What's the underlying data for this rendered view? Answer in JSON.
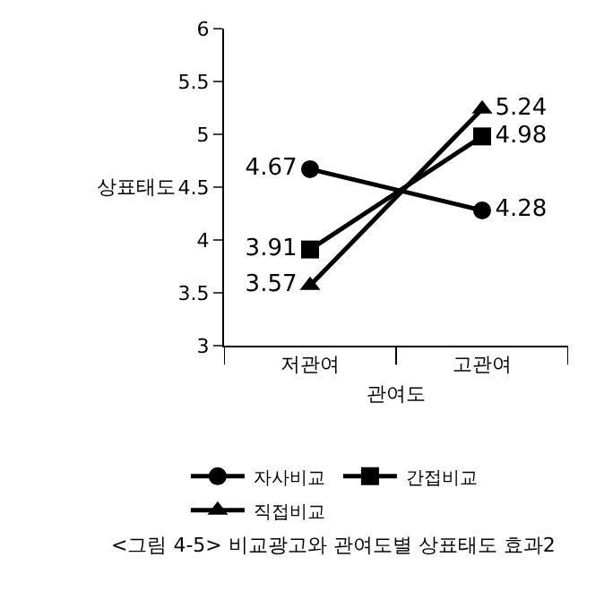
{
  "chart_data": {
    "type": "line",
    "xlabel": "관여도",
    "ylabel": "상표태도",
    "categories": [
      "저관여",
      "고관여"
    ],
    "series": [
      {
        "name": "자사비교",
        "color": "#000000",
        "marker": "circle",
        "values": [
          4.67,
          4.28
        ]
      },
      {
        "name": "간접비교",
        "color": "#000000",
        "marker": "square",
        "values": [
          3.91,
          4.98
        ]
      },
      {
        "name": "직접비교",
        "color": "#000000",
        "marker": "triangle",
        "values": [
          3.57,
          5.24
        ]
      }
    ],
    "ylim": [
      3,
      6
    ],
    "yticks": [
      3,
      3.5,
      4,
      4.5,
      5,
      5.5,
      6
    ],
    "data_labels": true,
    "legend": "bottom",
    "annotations": [
      "<그림 4-5> 비교광고와 관여도별 상표태도 효과2"
    ]
  }
}
